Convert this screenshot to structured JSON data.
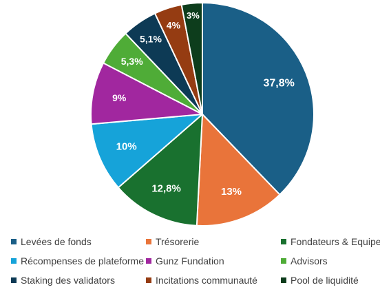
{
  "chart_data": {
    "type": "pie",
    "title": "",
    "legend_position": "bottom",
    "slices": [
      {
        "name": "Levées de fonds",
        "value": 37.8,
        "label": "37,8%",
        "color": "#1a5f87"
      },
      {
        "name": "Trésorerie",
        "value": 13,
        "label": "13%",
        "color": "#e9743a"
      },
      {
        "name": "Fondateurs & Equipe",
        "value": 12.8,
        "label": "12,8%",
        "color": "#19712f"
      },
      {
        "name": "Récompenses de plateforme",
        "value": 10,
        "label": "10%",
        "color": "#16a3d9"
      },
      {
        "name": "Gunz Fundation",
        "value": 9,
        "label": "9%",
        "color": "#a1279f"
      },
      {
        "name": "Advisors",
        "value": 5.3,
        "label": "5,3%",
        "color": "#4fac37"
      },
      {
        "name": "Staking des validators",
        "value": 5.1,
        "label": "5,1%",
        "color": "#0d3a55"
      },
      {
        "name": "Incitations communauté",
        "value": 4,
        "label": "4%",
        "color": "#953c12"
      },
      {
        "name": "Pool de liquidité",
        "value": 3,
        "label": "3%",
        "color": "#0d3d1c"
      }
    ]
  }
}
